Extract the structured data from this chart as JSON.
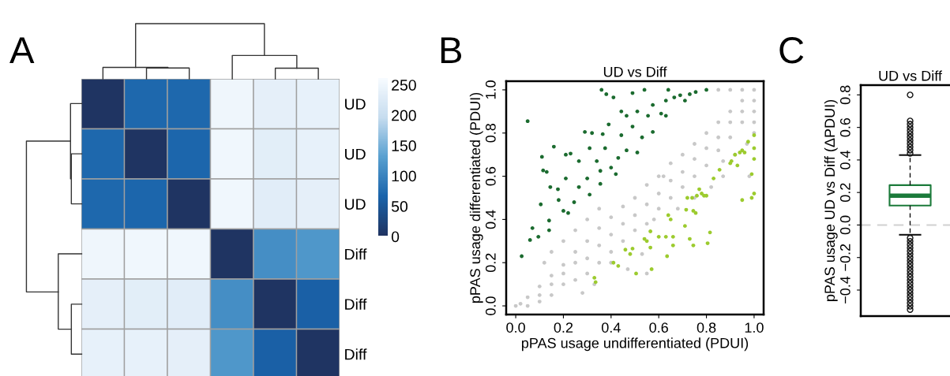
{
  "chart_data": [
    {
      "type": "heatmap",
      "annotations": [
        "A"
      ],
      "categories": [
        null,
        null,
        null,
        null,
        null,
        null
      ],
      "y_categories": [
        "UD",
        "UD",
        "UD",
        "Diff",
        "Diff",
        "Diff"
      ],
      "cells": [
        [
          0,
          70,
          70,
          248,
          235,
          238
        ],
        [
          70,
          0,
          68,
          250,
          232,
          238
        ],
        [
          70,
          68,
          0,
          250,
          230,
          235
        ],
        [
          248,
          250,
          250,
          0,
          110,
          120
        ],
        [
          235,
          232,
          230,
          110,
          0,
          60
        ],
        [
          238,
          238,
          235,
          120,
          60,
          0
        ]
      ],
      "clim": [
        0,
        260
      ],
      "cticks": [
        0,
        50,
        100,
        150,
        200,
        250
      ]
    },
    {
      "type": "scatter",
      "title": "UD vs Diff",
      "annotations": [
        "B"
      ],
      "xlabel": "pPAS usage undifferentiated (PDUI)",
      "ylabel": "pPAS usage differentiated (PDUI)",
      "marker": "circle",
      "grid": false,
      "xlim": [
        -0.04,
        1.04
      ],
      "ylim": [
        -0.04,
        1.04
      ],
      "xticks": [
        {
          "value": 0,
          "label": "0.0"
        },
        {
          "value": 0.2,
          "label": "0.2"
        },
        {
          "value": 0.4,
          "label": "0.4"
        },
        {
          "value": 0.6,
          "label": "0.6"
        },
        {
          "value": 0.8,
          "label": "0.8"
        },
        {
          "value": 1,
          "label": "1.0"
        }
      ],
      "yticks": [
        {
          "value": 0,
          "label": "0.0"
        },
        {
          "value": 0.2,
          "label": "0.2"
        },
        {
          "value": 0.4,
          "label": "0.4"
        },
        {
          "value": 0.6,
          "label": "0.6"
        },
        {
          "value": 0.8,
          "label": "0.8"
        },
        {
          "value": 1,
          "label": "1.0"
        }
      ],
      "series": [
        {
          "color": "#c8c8c8",
          "x": [
            0,
            0.02,
            0.05,
            0.1,
            0.15,
            0.2,
            0.25,
            0.3,
            0.35,
            0.4,
            0.45,
            0.5,
            0.55,
            0.6,
            0.65,
            0.7,
            0.75,
            0.8,
            0.85,
            0.9,
            0.95,
            1,
            0.85,
            0.9,
            0.95,
            1,
            1,
            0.05,
            0.1,
            0.1,
            0.15,
            0.15,
            0.2,
            0.2,
            0.25,
            0.25,
            0.3,
            0.3,
            0.35,
            0.35,
            0.4,
            0.4,
            0.45,
            0.45,
            0.5,
            0.5,
            0.55,
            0.55,
            0.6,
            0.6,
            0.65,
            0.65,
            0.7,
            0.7,
            0.75,
            0.75,
            0.8,
            0.8,
            0.85,
            0.85,
            0.9,
            0.9,
            0.95,
            0.95,
            1,
            1,
            0.97,
            0.92,
            0.87,
            0.62,
            0.58,
            0.53,
            0.47,
            0.4,
            0.33,
            0.28,
            0.55,
            0.68,
            0.75,
            0.82,
            0.87,
            0.98,
            0.12,
            0.15,
            0.2,
            0.25,
            0.3,
            0.35
          ],
          "values": [
            0,
            0.01,
            0.04,
            0.09,
            0.14,
            0.19,
            0.25,
            0.3,
            0.36,
            0.41,
            0.46,
            0.5,
            0.56,
            0.6,
            0.66,
            0.7,
            0.75,
            0.8,
            0.85,
            0.9,
            0.95,
            1,
            1,
            1,
            1,
            0.95,
            0.9,
            0,
            0.02,
            0.05,
            0.05,
            0.1,
            0.1,
            0.15,
            0.12,
            0.2,
            0.15,
            0.22,
            0.2,
            0.28,
            0.25,
            0.33,
            0.3,
            0.38,
            0.35,
            0.42,
            0.38,
            0.47,
            0.45,
            0.52,
            0.5,
            0.58,
            0.55,
            0.62,
            0.6,
            0.68,
            0.65,
            0.73,
            0.72,
            0.78,
            0.78,
            0.85,
            0.85,
            0.9,
            0.85,
            0.8,
            0.75,
            0.7,
            0.67,
            0.6,
            0.4,
            0.24,
            0.17,
            0.2,
            0.1,
            0.06,
            0.15,
            0.45,
            0.5,
            0.55,
            0.6,
            0.6,
            0.2,
            0.25,
            0.3,
            0.35,
            0.4,
            0.45
          ]
        },
        {
          "color": "#1b6b2f",
          "x": [
            0.05,
            0.025,
            0.06,
            0.36,
            0.11,
            0.115,
            0.13,
            0.16,
            0.145,
            0.21,
            0.23,
            0.29,
            0.32,
            0.38,
            0.41,
            0.49,
            0.54,
            0.64,
            0.8,
            0.07,
            0.095,
            0.105,
            0.14,
            0.14,
            0.18,
            0.2,
            0.22,
            0.265,
            0.3,
            0.34,
            0.375,
            0.4,
            0.443,
            0.465,
            0.49,
            0.51,
            0.555,
            0.575,
            0.61,
            0.63,
            0.665,
            0.69,
            0.73,
            0.53,
            0.43,
            0.355,
            0.31,
            0.245,
            0.355,
            0.42,
            0.51,
            0.575,
            0.63,
            0.71,
            0.755,
            0.465,
            0.443,
            0.39,
            0.365,
            0.31,
            0.265,
            0.21,
            0.177
          ],
          "values": [
            0.855,
            0.23,
            0.305,
            1.0,
            0.69,
            0.627,
            0.62,
            0.737,
            0.55,
            0.7,
            0.705,
            0.805,
            0.8,
            0.98,
            0.965,
            0.985,
            1.0,
            1.0,
            1.0,
            0.36,
            0.32,
            0.47,
            0.395,
            0.35,
            0.49,
            0.44,
            0.43,
            0.55,
            0.59,
            0.67,
            0.73,
            0.64,
            0.79,
            0.72,
            0.83,
            0.9,
            0.88,
            0.93,
            0.89,
            0.95,
            0.965,
            0.975,
            0.98,
            0.78,
            0.685,
            0.625,
            0.515,
            0.48,
            0.565,
            0.61,
            0.71,
            0.805,
            0.88,
            0.95,
            0.99,
            0.88,
            0.9,
            0.84,
            0.795,
            0.73,
            0.67,
            0.59,
            0.54
          ]
        },
        {
          "color": "#9ccb2e",
          "x": [
            0.33,
            0.335,
            0.41,
            0.43,
            0.46,
            0.48,
            0.49,
            0.505,
            0.54,
            0.55,
            0.565,
            0.565,
            0.57,
            0.6,
            0.63,
            0.635,
            0.64,
            0.65,
            0.66,
            0.66,
            0.71,
            0.715,
            0.72,
            0.73,
            0.74,
            0.745,
            0.755,
            0.745,
            0.76,
            0.77,
            0.78,
            0.79,
            0.8,
            0.805,
            0.815,
            0.83,
            0.855,
            0.9,
            0.905,
            0.92,
            0.93,
            0.94,
            0.95,
            0.96,
            0.975,
            0.95,
            0.99,
            0.99,
            1.0,
            1.0,
            1.0,
            1.0
          ],
          "values": [
            0.13,
            0.11,
            0.2,
            0.185,
            0.26,
            0.24,
            0.265,
            0.15,
            0.31,
            0.3,
            0.345,
            0.27,
            0.17,
            0.32,
            0.32,
            0.23,
            0.42,
            0.4,
            0.32,
            0.28,
            0.37,
            0.445,
            0.5,
            0.31,
            0.5,
            0.44,
            0.43,
            0.28,
            0.51,
            0.54,
            0.52,
            0.51,
            0.51,
            0.29,
            0.34,
            0.59,
            0.63,
            0.66,
            0.67,
            0.7,
            0.65,
            0.71,
            0.72,
            0.71,
            0.76,
            0.49,
            0.61,
            0.5,
            0.79,
            0.73,
            0.68,
            0.52
          ]
        }
      ]
    },
    {
      "type": "box",
      "title": "UD vs Diff",
      "annotations": [
        "C"
      ],
      "ylabel": "pPAS usage UD vs Diff (ΔPDUI)",
      "categories": [
        null
      ],
      "ylim": [
        -0.56,
        0.86
      ],
      "yticks": [
        {
          "value": -0.4,
          "label": "−0.4"
        },
        {
          "value": -0.2,
          "label": "−0.2"
        },
        {
          "value": 0,
          "label": "0.0"
        },
        {
          "value": 0.2,
          "label": "0.2"
        },
        {
          "value": 0.4,
          "label": "0.4"
        },
        {
          "value": 0.6,
          "label": "0.6"
        },
        {
          "value": 0.8,
          "label": "0.8"
        }
      ],
      "ref_lines": [
        {
          "axis": "y",
          "value": 0,
          "color": "#d0d0d0",
          "line_style": "dashed"
        }
      ],
      "series": [
        {
          "color": "#1b7a3a",
          "boxes": [
            {
              "low": -0.06,
              "q1": 0.12,
              "median": 0.18,
              "q3": 0.245,
              "high": 0.43,
              "outliers": [
                0.8,
                0.64,
                0.62,
                0.6,
                0.58,
                0.56,
                0.54,
                0.52,
                0.5,
                0.48,
                0.46,
                0.44,
                -0.08,
                -0.1,
                -0.12,
                -0.14,
                -0.16,
                -0.18,
                -0.2,
                -0.22,
                -0.24,
                -0.26,
                -0.28,
                -0.3,
                -0.32,
                -0.34,
                -0.36,
                -0.38,
                -0.4,
                -0.42,
                -0.44,
                -0.46,
                -0.48,
                -0.5,
                -0.52
              ]
            }
          ]
        }
      ]
    }
  ]
}
